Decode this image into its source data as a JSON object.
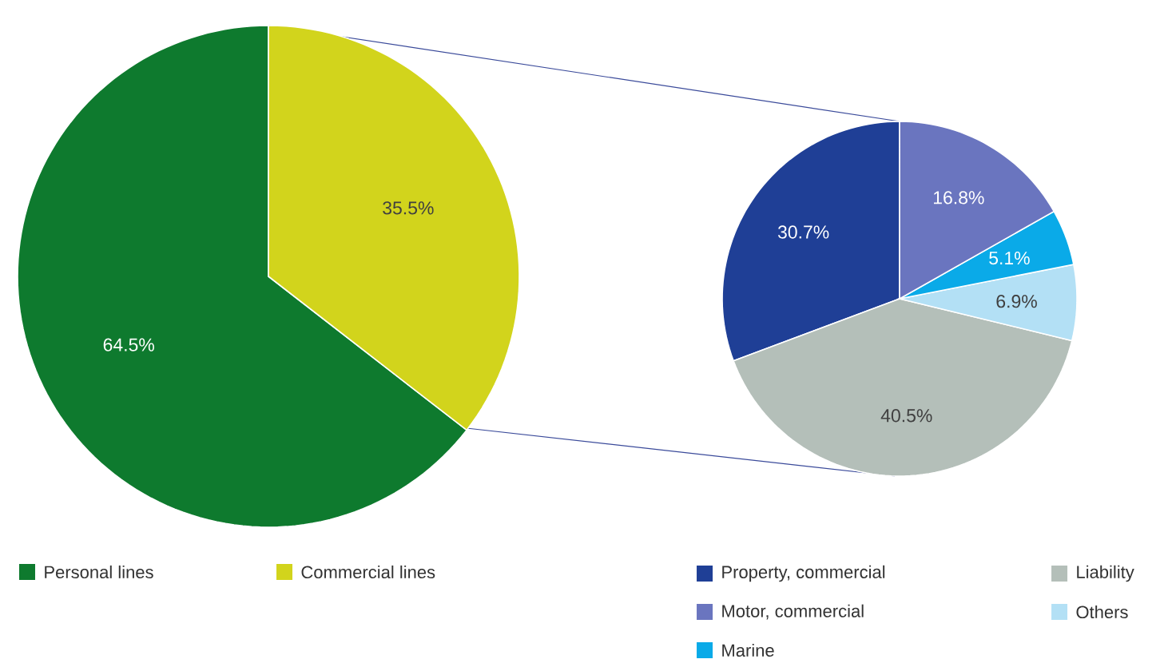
{
  "chart_data": [
    {
      "type": "pie",
      "categories": [
        "Personal lines",
        "Commercial lines"
      ],
      "values": [
        64.5,
        35.5
      ],
      "colors": [
        "#0e7a2e",
        "#d2d41c"
      ],
      "value_labels": [
        "64.5%",
        "35.5%"
      ],
      "legend": "bottom"
    },
    {
      "type": "pie",
      "categories": [
        "Property, commercial",
        "Liability",
        "Others",
        "Marine",
        "Motor, commercial"
      ],
      "values": [
        30.7,
        40.5,
        6.9,
        5.1,
        16.8
      ],
      "colors": [
        "#1f3f96",
        "#b4bfb9",
        "#b3e0f5",
        "#0aaae8",
        "#6a75bf"
      ],
      "value_labels": [
        "30.7%",
        "40.5%",
        "6.9%",
        "5.1%",
        "16.8%"
      ],
      "legend": "bottom"
    }
  ]
}
